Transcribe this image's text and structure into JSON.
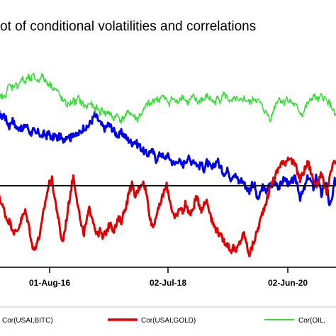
{
  "chart_data": {
    "type": "line",
    "title": "ot of conditional volatilities and correlations",
    "xlabel": "",
    "ylabel": "",
    "x_tick_labels": [
      "01-Aug-16",
      "02-Jul-18",
      "02-Jun-20"
    ],
    "reference_line": {
      "color": "#000000"
    },
    "grid": false,
    "legend_position": "bottom",
    "series": [
      {
        "name": "Cor(USAI,BITC)",
        "color": "#0000ee",
        "values": [
          0.62,
          0.58,
          0.6,
          0.55,
          0.5,
          0.56,
          0.52,
          0.48,
          0.5,
          0.46,
          0.52,
          0.49,
          0.44,
          0.47,
          0.43,
          0.46,
          0.41,
          0.44,
          0.42,
          0.45,
          0.39,
          0.43,
          0.4,
          0.42,
          0.38,
          0.41,
          0.43,
          0.4,
          0.45,
          0.42,
          0.44,
          0.46,
          0.5,
          0.48,
          0.52,
          0.55,
          0.6,
          0.57,
          0.53,
          0.5,
          0.48,
          0.52,
          0.5,
          0.47,
          0.44,
          0.42,
          0.45,
          0.43,
          0.4,
          0.38,
          0.36,
          0.38,
          0.35,
          0.33,
          0.3,
          0.28,
          0.26,
          0.3,
          0.28,
          0.22,
          0.25,
          0.28,
          0.22,
          0.26,
          0.24,
          0.2,
          0.18,
          0.22,
          0.2,
          0.17,
          0.21,
          0.24,
          0.2,
          0.22,
          0.19,
          0.16,
          0.18,
          0.14,
          0.2,
          0.17,
          0.14,
          0.18,
          0.22,
          0.16,
          0.12,
          0.1,
          0.14,
          0.06,
          0.1,
          0.08,
          0.03,
          0.05,
          0.02,
          -0.02,
          -0.05,
          0.02,
          0.0,
          -0.12,
          -0.08,
          0.0,
          -0.05,
          -0.02,
          0.02,
          0.0,
          0.04,
          -0.02,
          0.02,
          0.06,
          0.04,
          0.0,
          0.04,
          0.06,
          0.02,
          -0.1,
          -0.06,
          0.0,
          0.08,
          0.04,
          -0.02,
          0.08,
          0.02,
          -0.08,
          0.0,
          0.02,
          -0.18,
          -0.12,
          0.04,
          0.0
        ]
      },
      {
        "name": "Cor(USAI,GOLD)",
        "color": "#e00000",
        "values": [
          -0.05,
          -0.15,
          -0.2,
          -0.28,
          -0.3,
          -0.35,
          -0.4,
          -0.38,
          -0.32,
          -0.26,
          -0.22,
          -0.3,
          -0.42,
          -0.55,
          -0.5,
          -0.45,
          -0.35,
          -0.2,
          -0.08,
          0.02,
          0.05,
          -0.1,
          -0.22,
          -0.38,
          -0.48,
          -0.35,
          -0.2,
          -0.05,
          0.08,
          -0.05,
          -0.2,
          -0.35,
          -0.4,
          -0.3,
          -0.2,
          -0.25,
          -0.35,
          -0.42,
          -0.38,
          -0.44,
          -0.4,
          -0.36,
          -0.3,
          -0.38,
          -0.34,
          -0.28,
          -0.3,
          -0.22,
          -0.15,
          -0.05,
          0.02,
          -0.1,
          -0.05,
          0.0,
          0.03,
          -0.02,
          -0.15,
          -0.3,
          -0.35,
          -0.25,
          -0.2,
          -0.12,
          -0.05,
          0.0,
          -0.1,
          -0.2,
          -0.28,
          -0.25,
          -0.18,
          -0.22,
          -0.15,
          -0.2,
          -0.25,
          -0.18,
          -0.1,
          -0.14,
          -0.2,
          -0.16,
          -0.12,
          -0.2,
          -0.3,
          -0.35,
          -0.38,
          -0.42,
          -0.45,
          -0.48,
          -0.5,
          -0.55,
          -0.52,
          -0.56,
          -0.5,
          -0.45,
          -0.4,
          -0.5,
          -0.58,
          -0.52,
          -0.45,
          -0.38,
          -0.3,
          -0.22,
          -0.15,
          -0.08,
          0.0,
          0.05,
          0.1,
          0.15,
          0.2,
          0.18,
          0.22,
          0.25,
          0.2,
          0.18,
          0.12,
          0.05,
          0.1,
          0.15,
          0.2,
          0.12,
          0.05,
          0.0,
          0.05,
          0.1,
          0.0,
          -0.05,
          0.05,
          0.15,
          0.2,
          0.18
        ]
      },
      {
        "name": "Cor(OIL,",
        "color": "#33dd33",
        "values": [
          0.72,
          0.76,
          0.74,
          0.8,
          0.85,
          0.83,
          0.86,
          0.84,
          0.88,
          0.9,
          0.87,
          0.92,
          0.89,
          0.93,
          0.9,
          0.88,
          0.94,
          0.9,
          0.88,
          0.86,
          0.84,
          0.82,
          0.8,
          0.76,
          0.72,
          0.7,
          0.68,
          0.7,
          0.72,
          0.7,
          0.74,
          0.7,
          0.68,
          0.66,
          0.7,
          0.68,
          0.64,
          0.66,
          0.62,
          0.65,
          0.6,
          0.63,
          0.6,
          0.56,
          0.6,
          0.58,
          0.55,
          0.58,
          0.6,
          0.63,
          0.6,
          0.58,
          0.56,
          0.6,
          0.62,
          0.66,
          0.7,
          0.68,
          0.72,
          0.74,
          0.72,
          0.76,
          0.74,
          0.72,
          0.7,
          0.74,
          0.72,
          0.7,
          0.74,
          0.76,
          0.72,
          0.7,
          0.73,
          0.75,
          0.72,
          0.7,
          0.74,
          0.72,
          0.76,
          0.74,
          0.72,
          0.7,
          0.74,
          0.72,
          0.78,
          0.76,
          0.74,
          0.7,
          0.72,
          0.74,
          0.7,
          0.72,
          0.74,
          0.72,
          0.7,
          0.72,
          0.74,
          0.72,
          0.7,
          0.66,
          0.62,
          0.6,
          0.56,
          0.64,
          0.7,
          0.74,
          0.72,
          0.7,
          0.74,
          0.72,
          0.7,
          0.68,
          0.66,
          0.62,
          0.6,
          0.66,
          0.7,
          0.72,
          0.76,
          0.74,
          0.72,
          0.76,
          0.74,
          0.72,
          0.7,
          0.66,
          0.6,
          0.58
        ]
      }
    ]
  }
}
